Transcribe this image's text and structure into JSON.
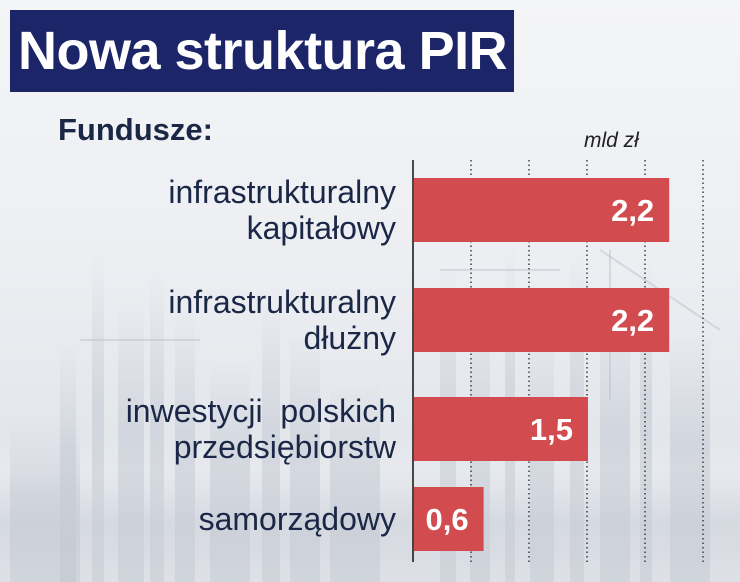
{
  "header": {
    "title": "Nowa struktura PIR"
  },
  "colors": {
    "title_bg": "#1b2568",
    "bar": "#d24b4e",
    "label_text": "#1b2746"
  },
  "chart_data": {
    "type": "bar",
    "orientation": "horizontal",
    "title": "Nowa struktura PIR",
    "subtitle": "Fundusze:",
    "unit": "mld zł",
    "categories": [
      [
        "infrastrukturalny",
        "kapitałowy"
      ],
      [
        "infrastrukturalny",
        "dłużny"
      ],
      [
        "inwestycji  polskich",
        "przedsiębiorstw"
      ],
      [
        "samorządowy"
      ]
    ],
    "values": [
      2.2,
      2.2,
      1.5,
      0.6
    ],
    "value_labels": [
      "2,2",
      "2,2",
      "1,5",
      "0,6"
    ],
    "xlim": [
      0,
      2.5
    ],
    "gridlines": [
      0.5,
      1.0,
      1.5,
      2.0,
      2.5
    ],
    "grid": true
  }
}
